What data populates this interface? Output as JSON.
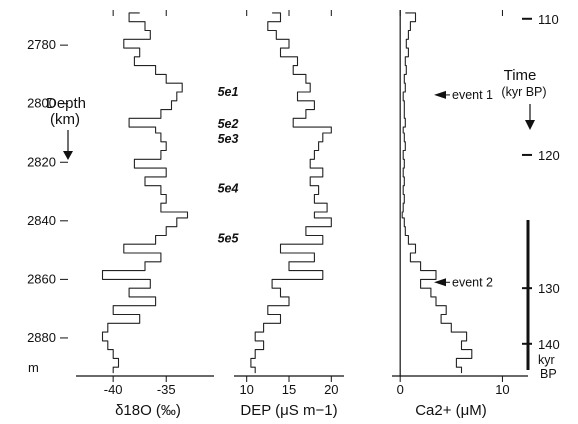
{
  "chart_data": {
    "type": "line",
    "grid": false,
    "depth_axis": {
      "unit_label": "m",
      "ticks": [
        "2780",
        "2800",
        "2820",
        "2840",
        "2860",
        "2880"
      ],
      "tick_values": [
        2780,
        2800,
        2820,
        2840,
        2860,
        2880
      ],
      "range": [
        2768,
        2893
      ],
      "label_line1": "Depth",
      "label_line2": "(km)"
    },
    "time_axis": {
      "label_line1": "Time",
      "label_line2": "(kyr BP)",
      "ticks": [
        "110",
        "120",
        "130",
        "140"
      ],
      "tick_depths": [
        2771,
        2817.5,
        2863,
        2882
      ],
      "unit_line1": "kyr",
      "unit_line2": "BP"
    },
    "panels": [
      {
        "id": "d18O",
        "xlabel": "δ18O (‰)",
        "xlim": [
          -43.5,
          -30.5
        ],
        "ticks": [
          "-40",
          "-35"
        ],
        "tick_values": [
          -40,
          -35
        ],
        "series": [
          {
            "depth": [
              2769,
              2772,
              2775,
              2778,
              2781,
              2784,
              2787,
              2790,
              2793,
              2796,
              2799,
              2802,
              2805,
              2808,
              2810,
              2813,
              2816,
              2819,
              2822,
              2825,
              2828,
              2831,
              2834,
              2837,
              2839,
              2842,
              2845,
              2848,
              2851,
              2854,
              2857,
              2860,
              2863,
              2866,
              2869,
              2872,
              2875,
              2878,
              2881,
              2884,
              2887,
              2890,
              2892
            ],
            "value": [
              -37.5,
              -38.5,
              -37,
              -36.5,
              -39,
              -37.5,
              -38,
              -36,
              -35,
              -33.5,
              -34,
              -34.5,
              -35.5,
              -38.5,
              -36,
              -35.5,
              -35,
              -35.5,
              -38,
              -35,
              -37,
              -35.5,
              -35,
              -35.5,
              -33,
              -34,
              -35,
              -36,
              -39,
              -35.5,
              -37,
              -41,
              -36.5,
              -38.5,
              -36,
              -40,
              -37.5,
              -40.5,
              -41,
              -40.5,
              -40,
              -39.5,
              -40
            ]
          }
        ]
      },
      {
        "id": "DEP",
        "xlabel": "DEP (μS m−1)",
        "xlim": [
          8.5,
          21.5
        ],
        "ticks": [
          "10",
          "15",
          "20"
        ],
        "tick_values": [
          10,
          15,
          20
        ],
        "series": [
          {
            "depth": [
              2769,
              2772,
              2775,
              2778,
              2781,
              2784,
              2787,
              2790,
              2793,
              2796,
              2799,
              2802,
              2805,
              2808,
              2810,
              2813,
              2816,
              2819,
              2822,
              2825,
              2828,
              2831,
              2834,
              2837,
              2839,
              2842,
              2845,
              2848,
              2851,
              2854,
              2857,
              2860,
              2863,
              2866,
              2869,
              2872,
              2875,
              2878,
              2881,
              2884,
              2887,
              2890,
              2892
            ],
            "value": [
              13,
              14,
              12.5,
              13.5,
              15,
              14,
              16,
              15.5,
              17,
              17.5,
              16,
              18,
              17,
              15.5,
              20,
              19,
              18.5,
              18,
              17.5,
              19,
              17.5,
              18.5,
              18,
              19.5,
              18,
              20,
              17,
              19,
              14,
              18,
              15,
              19,
              13,
              14,
              15,
              12.5,
              14,
              12,
              11,
              12,
              11,
              10.5,
              11
            ]
          }
        ]
      },
      {
        "id": "Ca",
        "xlabel": "Ca2+ (μM)",
        "xlim": [
          -0.8,
          12.5
        ],
        "ticks": [
          "0",
          "10"
        ],
        "tick_values": [
          0,
          10
        ],
        "series": [
          {
            "depth": [
              2769,
              2772,
              2775,
              2778,
              2781,
              2784,
              2787,
              2790,
              2793,
              2796,
              2799,
              2802,
              2805,
              2808,
              2810,
              2813,
              2816,
              2819,
              2822,
              2825,
              2828,
              2831,
              2834,
              2837,
              2839,
              2842,
              2845,
              2848,
              2851,
              2854,
              2857,
              2860,
              2863,
              2866,
              2869,
              2872,
              2875,
              2878,
              2881,
              2884,
              2887,
              2890,
              2892
            ],
            "value": [
              0.5,
              1.5,
              1,
              0.8,
              0.6,
              0.8,
              0.5,
              0.6,
              0.4,
              0.5,
              0.3,
              0.4,
              0.4,
              0.5,
              0.3,
              0.4,
              0.5,
              0.3,
              0.4,
              0.3,
              0.4,
              0.3,
              0.4,
              0.3,
              0.2,
              0.4,
              0.5,
              0.8,
              1.5,
              1,
              2,
              3.5,
              2,
              3,
              3.5,
              4.5,
              4,
              5,
              6.5,
              6,
              7,
              5.5,
              6
            ]
          }
        ]
      }
    ],
    "annotations": {
      "phases": [
        {
          "label": "5e1",
          "depth": 2796
        },
        {
          "label": "5e2",
          "depth": 2807
        },
        {
          "label": "5e3",
          "depth": 2812
        },
        {
          "label": "5e4",
          "depth": 2829
        },
        {
          "label": "5e5",
          "depth": 2846
        }
      ],
      "events": [
        {
          "label": "event 1",
          "depth": 2797
        },
        {
          "label": "event 2",
          "depth": 2861
        }
      ]
    }
  }
}
